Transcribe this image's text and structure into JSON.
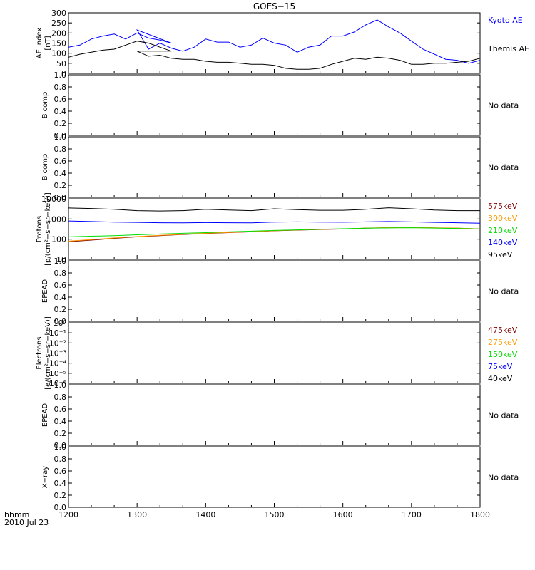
{
  "title": "GOES−15",
  "colors": {
    "kyoto": "#0000ff",
    "themis": "#000000",
    "p575": "#7f0000",
    "p300": "#ff9900",
    "p210": "#00dd00",
    "p140": "#0000ff",
    "p95": "#000000",
    "e475": "#7f0000",
    "e275": "#ff9900",
    "e150": "#00dd00",
    "e75": "#0000ff",
    "e40": "#000000"
  },
  "time_axis": {
    "corner_label_1": "hhmm",
    "corner_label_2": "2010 Jul 23",
    "ticks": [
      "1200",
      "1300",
      "1400",
      "1500",
      "1600",
      "1700",
      "1800"
    ]
  },
  "panels": [
    {
      "id": "ae",
      "ylabel_line1": "AE index",
      "ylabel_line2": "[nT]",
      "ticks": [
        "0",
        "50",
        "100",
        "150",
        "200",
        "250",
        "300"
      ],
      "legend": [
        {
          "text": "Kyoto AE",
          "color_key": "kyoto"
        },
        {
          "text": "Themis AE",
          "color_key": "themis"
        }
      ]
    },
    {
      "id": "bcomp1",
      "ylabel_line1": "B comp",
      "ylabel_line2": "",
      "ticks": [
        "0.0",
        "0.2",
        "0.4",
        "0.6",
        "0.8",
        "1.0"
      ],
      "status": "No data"
    },
    {
      "id": "bcomp2",
      "ylabel_line1": "B comp",
      "ylabel_line2": "",
      "ticks": [
        "0.0",
        "0.2",
        "0.4",
        "0.6",
        "0.8",
        "1.0"
      ],
      "status": "No data"
    },
    {
      "id": "protons",
      "ylabel_line1": "Protons",
      "ylabel_line2": "[p/(cm²−s−sr−keV)]",
      "ticks": [
        "10",
        "100",
        "1000",
        "10000"
      ],
      "legend": [
        {
          "text": "575keV",
          "color_key": "p575"
        },
        {
          "text": "300keV",
          "color_key": "p300"
        },
        {
          "text": "210keV",
          "color_key": "p210"
        },
        {
          "text": "140keV",
          "color_key": "p140"
        },
        {
          "text": "95keV",
          "color_key": "p95"
        }
      ]
    },
    {
      "id": "epead1",
      "ylabel_line1": "EPEAD",
      "ylabel_line2": "",
      "ticks": [
        "0.0",
        "0.2",
        "0.4",
        "0.6",
        "0.8",
        "1.0"
      ],
      "status": "No data"
    },
    {
      "id": "electrons",
      "ylabel_line1": "Electrons",
      "ylabel_line2": "[e/(cm²−s−sr−keV)]",
      "ticks": [
        "10⁻⁶",
        "10⁻⁵",
        "10⁻⁴",
        "10⁻³",
        "10⁻²",
        "10⁻¹",
        "10⁰"
      ],
      "legend": [
        {
          "text": "475keV",
          "color_key": "e475"
        },
        {
          "text": "275keV",
          "color_key": "e275"
        },
        {
          "text": "150keV",
          "color_key": "e150"
        },
        {
          "text": "75keV",
          "color_key": "e75"
        },
        {
          "text": "40keV",
          "color_key": "e40"
        }
      ]
    },
    {
      "id": "epead2",
      "ylabel_line1": "EPEAD",
      "ylabel_line2": "",
      "ticks": [
        "0.0",
        "0.2",
        "0.4",
        "0.6",
        "0.8",
        "1.0"
      ],
      "status": "No data"
    },
    {
      "id": "xray",
      "ylabel_line1": "X−ray",
      "ylabel_line2": "",
      "ticks": [
        "0.0",
        "0.2",
        "0.4",
        "0.6",
        "0.8",
        "1.0"
      ],
      "status": "No data"
    }
  ],
  "chart_data": [
    {
      "type": "line",
      "panel": "ae",
      "ylim": [
        0,
        300
      ],
      "x": [
        "1200",
        "1210",
        "1220",
        "1230",
        "1240",
        "1250",
        "1260",
        "1270",
        "1280",
        "1290",
        "1300",
        "1310",
        "1320",
        "1330",
        "1340",
        "1350",
        "1400",
        "1410",
        "1420",
        "1430",
        "1440",
        "1450",
        "1500",
        "1510",
        "1520",
        "1530",
        "1540",
        "1550",
        "1600",
        "1610",
        "1620",
        "1630",
        "1640",
        "1650",
        "1700",
        "1710",
        "1720",
        "1730",
        "1740",
        "1750",
        "1800"
      ],
      "series": [
        {
          "name": "Kyoto AE",
          "color_key": "kyoto",
          "values": [
            130,
            140,
            170,
            185,
            195,
            170,
            200,
            175,
            165,
            150,
            215,
            120,
            150,
            125,
            110,
            130,
            170,
            155,
            155,
            130,
            140,
            175,
            150,
            140,
            105,
            130,
            140,
            185,
            185,
            205,
            240,
            265,
            230,
            200,
            160,
            120,
            95,
            70,
            65,
            50,
            65
          ]
        },
        {
          "name": "Themis AE",
          "color_key": "themis",
          "values": [
            80,
            95,
            105,
            115,
            120,
            140,
            160,
            150,
            130,
            110,
            110,
            85,
            90,
            75,
            70,
            70,
            60,
            55,
            55,
            50,
            45,
            45,
            40,
            25,
            20,
            20,
            25,
            45,
            60,
            75,
            70,
            80,
            75,
            65,
            45,
            45,
            50,
            50,
            55,
            60,
            75
          ]
        }
      ]
    },
    {
      "type": "line",
      "panel": "protons",
      "yscale": "log",
      "ylim": [
        10,
        10000
      ],
      "x": [
        "1200",
        "1220",
        "1240",
        "1300",
        "1320",
        "1340",
        "1400",
        "1420",
        "1440",
        "1500",
        "1520",
        "1540",
        "1600",
        "1620",
        "1640",
        "1700",
        "1720",
        "1740",
        "1800"
      ],
      "series": [
        {
          "name": "575keV",
          "color_key": "p575",
          "values": [
            75,
            90,
            110,
            130,
            150,
            170,
            190,
            210,
            230,
            260,
            280,
            300,
            320,
            350,
            370,
            380,
            360,
            350,
            320
          ]
        },
        {
          "name": "300keV",
          "color_key": "p300",
          "values": [
            80,
            95,
            115,
            135,
            155,
            175,
            195,
            215,
            235,
            265,
            285,
            305,
            325,
            355,
            375,
            385,
            365,
            355,
            325
          ]
        },
        {
          "name": "210keV",
          "color_key": "p210",
          "values": [
            130,
            140,
            150,
            165,
            180,
            195,
            210,
            230,
            250,
            270,
            290,
            310,
            330,
            350,
            360,
            370,
            355,
            340,
            320
          ]
        },
        {
          "name": "140keV",
          "color_key": "p140",
          "values": [
            800,
            750,
            700,
            680,
            650,
            640,
            660,
            650,
            640,
            700,
            720,
            700,
            690,
            720,
            750,
            720,
            680,
            650,
            620
          ]
        },
        {
          "name": "95keV",
          "color_key": "p95",
          "values": [
            3500,
            3300,
            3000,
            2600,
            2500,
            2600,
            3000,
            2800,
            2600,
            3200,
            2900,
            2700,
            2700,
            3000,
            3600,
            3200,
            2800,
            2600,
            2600
          ]
        }
      ]
    }
  ]
}
